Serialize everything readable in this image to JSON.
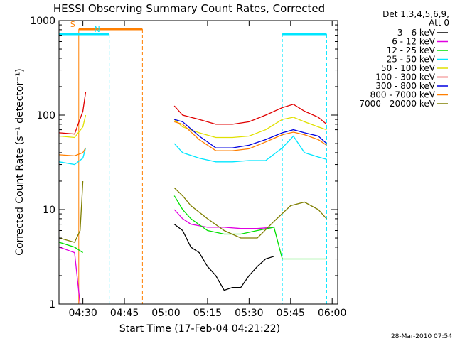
{
  "chart_data": {
    "type": "line",
    "title": "HESSI Observing Summary Count Rates, Corrected",
    "xlabel": "Start Time (17-Feb-04 04:21:22)",
    "ylabel": "Corrected Count Rate (s⁻¹ detector⁻¹)",
    "xlim": [
      "04:21:22",
      "06:02:00"
    ],
    "ylim": [
      1,
      1000
    ],
    "y_scale": "log",
    "x_ticks": [
      "04:30",
      "04:45",
      "05:00",
      "05:15",
      "05:30",
      "05:45",
      "06:00"
    ],
    "y_ticks": [
      "1",
      "10",
      "100",
      "1000"
    ],
    "legend_header": [
      "Det 1,3,4,5,6,9,",
      "Att 0"
    ],
    "legend_position": "right",
    "footer_date": "28-Mar-2010 07:54",
    "annotations": [
      {
        "text": "S",
        "color": "#ff7f00",
        "start": "04:28:30",
        "end": "04:51:30"
      },
      {
        "text": "N",
        "color": "#00e6ff",
        "start": "04:21:22",
        "end": "04:39:30"
      },
      {
        "text": "",
        "color": "#00e6ff",
        "start": "05:42:00",
        "end": "05:58:00"
      }
    ],
    "series": [
      {
        "name": "3 - 6 keV",
        "color": "#000000",
        "x": [
          "05:03",
          "05:06",
          "05:09",
          "05:12",
          "05:15",
          "05:18",
          "05:21",
          "05:24",
          "05:27",
          "05:30",
          "05:33",
          "05:36",
          "05:39"
        ],
        "y": [
          7,
          6,
          4,
          3.5,
          2.5,
          2,
          1.4,
          1.5,
          1.5,
          2,
          2.5,
          3,
          3.2
        ]
      },
      {
        "name": "6 - 12 keV",
        "color": "#e000e0",
        "x": [
          "04:21:30",
          "04:27",
          "04:29",
          "05:03",
          "05:06",
          "05:09",
          "05:15",
          "05:21",
          "05:27",
          "05:33",
          "05:39"
        ],
        "y": [
          4,
          3.5,
          1,
          10,
          8,
          7,
          6.5,
          6.5,
          6.3,
          6.3,
          6.5
        ]
      },
      {
        "name": "12 - 25 keV",
        "color": "#00e000",
        "x": [
          "04:21:30",
          "04:27",
          "04:30",
          "05:03",
          "05:06",
          "05:09",
          "05:15",
          "05:21",
          "05:27",
          "05:33",
          "05:39",
          "05:42",
          "05:50",
          "05:58"
        ],
        "y": [
          4.5,
          4,
          3.5,
          14,
          10,
          8,
          6,
          5.5,
          5.5,
          6,
          6.5,
          3,
          3,
          3
        ]
      },
      {
        "name": "25 - 50 keV",
        "color": "#00e6ff",
        "x": [
          "04:21:30",
          "04:27",
          "04:30",
          "04:31",
          "05:03",
          "05:06",
          "05:12",
          "05:18",
          "05:24",
          "05:30",
          "05:36",
          "05:42",
          "05:46",
          "05:50",
          "05:55",
          "05:58"
        ],
        "y": [
          32,
          30,
          35,
          45,
          50,
          40,
          35,
          32,
          32,
          33,
          33,
          45,
          60,
          40,
          36,
          34
        ]
      },
      {
        "name": "50 - 100 keV",
        "color": "#e0e000",
        "x": [
          "04:21:30",
          "04:27",
          "04:30",
          "04:31",
          "05:03",
          "05:06",
          "05:12",
          "05:18",
          "05:24",
          "05:30",
          "05:36",
          "05:42",
          "05:46",
          "05:50",
          "05:55",
          "05:58"
        ],
        "y": [
          60,
          58,
          75,
          100,
          90,
          75,
          65,
          58,
          58,
          60,
          70,
          90,
          95,
          85,
          75,
          70
        ]
      },
      {
        "name": "100 - 300 keV",
        "color": "#e00000",
        "x": [
          "04:21:30",
          "04:27",
          "04:30",
          "04:31",
          "05:03",
          "05:06",
          "05:12",
          "05:18",
          "05:24",
          "05:30",
          "05:36",
          "05:42",
          "05:46",
          "05:50",
          "05:55",
          "05:58"
        ],
        "y": [
          65,
          63,
          110,
          175,
          125,
          100,
          90,
          80,
          80,
          85,
          100,
          120,
          130,
          110,
          95,
          80
        ]
      },
      {
        "name": "300 - 800 keV",
        "color": "#0000e0",
        "x": [
          "05:03",
          "05:06",
          "05:12",
          "05:18",
          "05:24",
          "05:30",
          "05:36",
          "05:42",
          "05:46",
          "05:50",
          "05:55",
          "05:58"
        ],
        "y": [
          90,
          85,
          60,
          45,
          45,
          48,
          55,
          65,
          70,
          65,
          60,
          50
        ]
      },
      {
        "name": "800 - 7000 keV",
        "color": "#ff7f00",
        "x": [
          "04:21:30",
          "04:27",
          "04:30",
          "04:31",
          "05:03",
          "05:06",
          "05:12",
          "05:18",
          "05:24",
          "05:30",
          "05:36",
          "05:42",
          "05:46",
          "05:50",
          "05:55",
          "05:58"
        ],
        "y": [
          38,
          37,
          40,
          45,
          85,
          80,
          55,
          42,
          42,
          44,
          52,
          62,
          66,
          62,
          55,
          48
        ]
      },
      {
        "name": "7000 - 20000 keV",
        "color": "#7f7f00",
        "x": [
          "04:21:30",
          "04:27",
          "04:29",
          "04:30",
          "05:03",
          "05:06",
          "05:09",
          "05:15",
          "05:21",
          "05:27",
          "05:33",
          "05:39",
          "05:45",
          "05:50",
          "05:55",
          "05:58"
        ],
        "y": [
          5,
          4.5,
          6,
          20,
          17,
          14,
          11,
          8,
          6,
          5,
          5,
          7.5,
          11,
          12,
          10,
          8
        ]
      }
    ]
  }
}
